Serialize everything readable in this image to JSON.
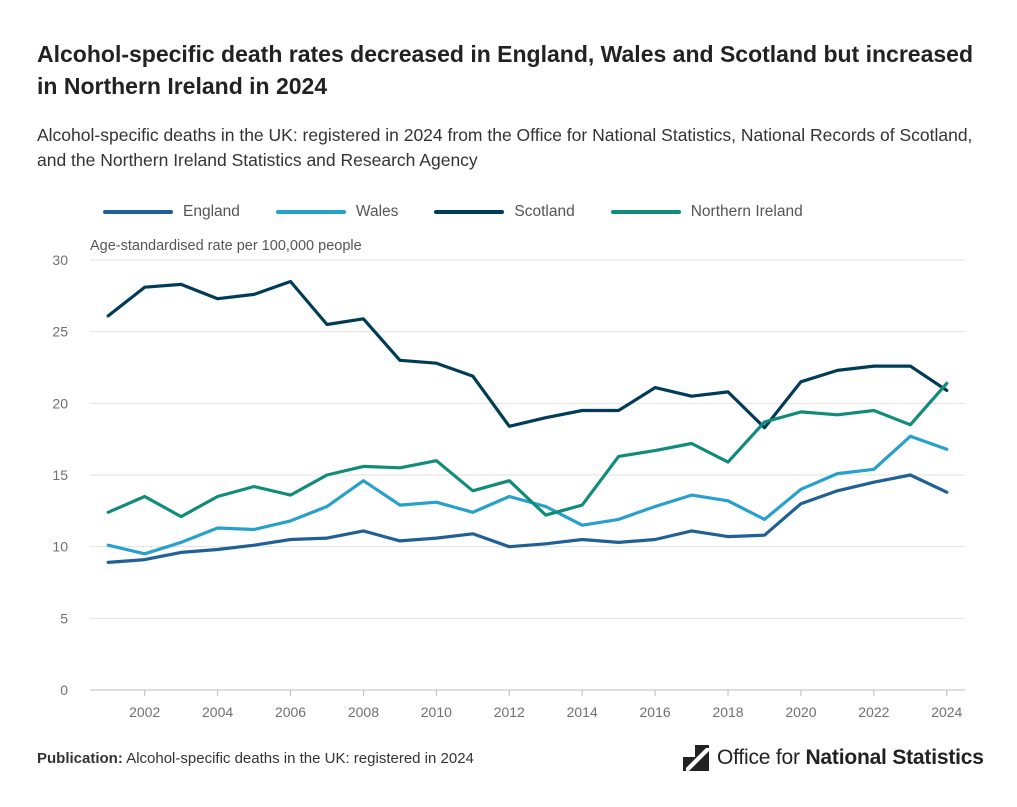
{
  "title": "Alcohol-specific death rates decreased in England, Wales and Scotland but increased in Northern Ireland in 2024",
  "subtitle": "Alcohol-specific deaths in the UK: registered in 2024 from the Office for National Statistics, National Records of Scotland, and the Northern Ireland Statistics and Research Agency",
  "footer": {
    "publication_label": "Publication:",
    "publication_title": "Alcohol-specific deaths in the UK: registered in 2024"
  },
  "logo": {
    "prefix": "Office for ",
    "strong": "National Statistics",
    "icon": "ons-logo-icon"
  },
  "chart_data": {
    "type": "line",
    "ylabel": "Age-standardised rate per 100,000 people",
    "xlabel": "",
    "ylim": [
      0,
      30
    ],
    "yticks": [
      0,
      5,
      10,
      15,
      20,
      25,
      30
    ],
    "xticks": [
      2002,
      2004,
      2006,
      2008,
      2010,
      2012,
      2014,
      2016,
      2018,
      2020,
      2022,
      2024
    ],
    "grid": true,
    "legend_position": "top-left",
    "x": [
      2001,
      2002,
      2003,
      2004,
      2005,
      2006,
      2007,
      2008,
      2009,
      2010,
      2011,
      2012,
      2013,
      2014,
      2015,
      2016,
      2017,
      2018,
      2019,
      2020,
      2021,
      2022,
      2023,
      2024
    ],
    "series": [
      {
        "name": "England",
        "color": "#206095",
        "values": [
          8.9,
          9.1,
          9.6,
          9.8,
          10.1,
          10.5,
          10.6,
          11.1,
          10.4,
          10.6,
          10.9,
          10.0,
          10.2,
          10.5,
          10.3,
          10.5,
          11.1,
          10.7,
          10.8,
          13.0,
          13.9,
          14.5,
          15.0,
          13.8
        ]
      },
      {
        "name": "Wales",
        "color": "#27a0cc",
        "values": [
          10.1,
          9.5,
          10.3,
          11.3,
          11.2,
          11.8,
          12.8,
          14.6,
          12.9,
          13.1,
          12.4,
          13.5,
          12.8,
          11.5,
          11.9,
          12.8,
          13.6,
          13.2,
          11.9,
          14.0,
          15.1,
          15.4,
          17.7,
          16.8
        ]
      },
      {
        "name": "Scotland",
        "color": "#003c57",
        "values": [
          26.1,
          28.1,
          28.3,
          27.3,
          27.6,
          28.5,
          25.5,
          25.9,
          23.0,
          22.8,
          21.9,
          18.4,
          19.0,
          19.5,
          19.5,
          21.1,
          20.5,
          20.8,
          18.3,
          21.5,
          22.3,
          22.6,
          22.6,
          20.9
        ]
      },
      {
        "name": "Northern Ireland",
        "color": "#118c7b",
        "values": [
          12.4,
          13.5,
          12.1,
          13.5,
          14.2,
          13.6,
          15.0,
          15.6,
          15.5,
          16.0,
          13.9,
          14.6,
          12.2,
          12.9,
          16.3,
          16.7,
          17.2,
          15.9,
          18.7,
          19.4,
          19.2,
          19.5,
          18.5,
          21.4
        ]
      }
    ]
  }
}
